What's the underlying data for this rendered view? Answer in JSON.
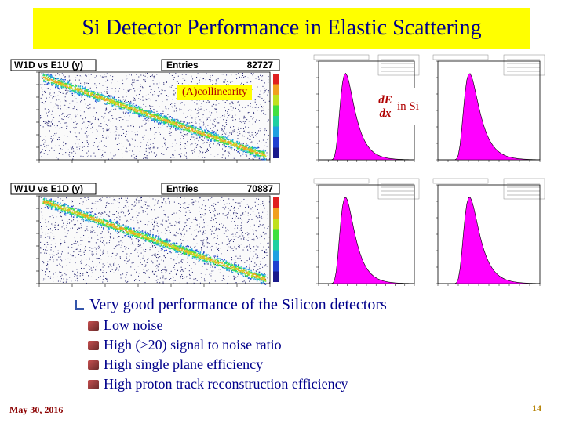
{
  "title": "Si Detector Performance in Elastic Scattering",
  "scatter_plots": [
    {
      "name": "W1D vs E1U (y)",
      "stats_label": "Entries",
      "stats_value": "82727",
      "annotation": "(A)collinearity"
    },
    {
      "name": "W1U vs E1D (y)",
      "stats_label": "Entries",
      "stats_value": "70887"
    }
  ],
  "dedx": {
    "numerator": "dE",
    "denominator": "dx",
    "suffix": "in Si"
  },
  "bullets": {
    "main": "Very good performance of the Silicon detectors",
    "items": [
      "Low noise",
      "High (>20) signal to noise ratio",
      "High single plane efficiency",
      "High proton track reconstruction efficiency"
    ]
  },
  "footer": {
    "date": "May 30, 2016",
    "page": "14"
  },
  "colors": {
    "title_bg": "#ffff00",
    "title_text": "#00008b",
    "histogram_fill": "#ff00ff",
    "annotation_text": "#b00000"
  }
}
